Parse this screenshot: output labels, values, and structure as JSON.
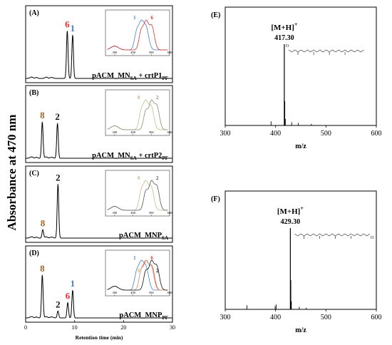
{
  "figure": {
    "y_axis_label": "Absorbance at 470 nm",
    "x_axis_label": "Retention time (min)",
    "x_ticks": [
      "0",
      "10",
      "20",
      "30"
    ],
    "ms_x_label": "m/z"
  },
  "colors": {
    "peak_6": "#e0322d",
    "peak_1": "#4a7fc9",
    "peak_8": "#a8642a",
    "peak_2": "#111111",
    "trace_black": "#000000",
    "trace_tan": "#d4b48a",
    "trace_gray": "#8c8c7a"
  },
  "chart_data": [
    {
      "type": "line",
      "panel": "(A)",
      "strain_main": "pACM_MN",
      "strain_sub": "SA",
      "plus": " + crtP1",
      "plus_sub": "PF",
      "x_range": [
        0,
        30
      ],
      "peaks": [
        {
          "label": "6",
          "rt": 8.5,
          "height": 0.68,
          "color": "#e0322d"
        },
        {
          "label": "1",
          "rt": 9.6,
          "height": 0.62,
          "color": "#4a7fc9"
        }
      ],
      "inset": {
        "x_ticks": [
          "300",
          "400",
          "500",
          "600"
        ],
        "series": [
          {
            "name": "1",
            "color": "#4a7fc9",
            "peaks_nm": [
              420,
              445,
              472
            ]
          },
          {
            "name": "6",
            "color": "#e0322d",
            "peaks_nm": [
              445,
              472,
              503
            ]
          }
        ]
      }
    },
    {
      "type": "line",
      "panel": "(B)",
      "strain_main": "pACM_MN",
      "strain_sub": "SA",
      "plus": " + crtP2",
      "plus_sub": "PF",
      "x_range": [
        0,
        30
      ],
      "peaks": [
        {
          "label": "8",
          "rt": 3.4,
          "height": 0.52,
          "color": "#a8642a"
        },
        {
          "label": "2",
          "rt": 6.5,
          "height": 0.5,
          "color": "#111111"
        }
      ],
      "inset": {
        "x_ticks": [
          "300",
          "400",
          "500",
          "600"
        ],
        "series": [
          {
            "name": "8",
            "color": "#d4b48a",
            "peaks_nm": [
              445,
              470,
              500
            ]
          },
          {
            "name": "2",
            "color": "#8c8c7a",
            "peaks_nm": [
              470,
              500,
              530
            ]
          }
        ]
      }
    },
    {
      "type": "line",
      "panel": "(C)",
      "strain_main": "pACM_MNP",
      "strain_sub": "SA",
      "plus": "",
      "plus_sub": "",
      "x_range": [
        0,
        30
      ],
      "peaks": [
        {
          "label": "8",
          "rt": 3.5,
          "height": 0.12,
          "color": "#a8642a"
        },
        {
          "label": "2",
          "rt": 6.6,
          "height": 0.78,
          "color": "#111111"
        }
      ],
      "inset": {
        "x_ticks": [
          "300",
          "400",
          "500",
          "600"
        ],
        "series": [
          {
            "name": "8",
            "color": "#d4b48a",
            "peaks_nm": [
              445,
              470,
              500
            ]
          },
          {
            "name": "2",
            "color": "#555555",
            "peaks_nm": [
              470,
              500,
              530
            ]
          }
        ]
      }
    },
    {
      "type": "line",
      "panel": "(D)",
      "strain_main": "pACM_MNP",
      "strain_sub": "PF",
      "plus": "",
      "plus_sub": "",
      "x_range": [
        0,
        30
      ],
      "peaks": [
        {
          "label": "8",
          "rt": 3.4,
          "height": 0.62,
          "color": "#a8642a"
        },
        {
          "label": "2",
          "rt": 6.6,
          "height": 0.1,
          "color": "#111111"
        },
        {
          "label": "6",
          "rt": 8.6,
          "height": 0.22,
          "color": "#e0322d"
        },
        {
          "label": "1",
          "rt": 9.6,
          "height": 0.4,
          "color": "#4a7fc9"
        }
      ],
      "inset": {
        "x_ticks": [
          "300",
          "400",
          "500",
          "600"
        ],
        "series": [
          {
            "name": "1",
            "color": "#4a7fc9",
            "peaks_nm": [
              420,
              445,
              472
            ]
          },
          {
            "name": "6",
            "color": "#e0322d",
            "peaks_nm": [
              445,
              472,
              503
            ]
          },
          {
            "name": "8",
            "color": "#d4b48a",
            "peaks_nm": [
              445,
              470,
              500
            ]
          },
          {
            "name": "2",
            "color": "#111111",
            "peaks_nm": [
              470,
              500,
              530
            ]
          }
        ]
      }
    },
    {
      "type": "bar",
      "panel": "(E)",
      "ion_label": "[M+H]",
      "ion_sup": "+",
      "ion_value": "417.30",
      "x_ticks": [
        "300",
        "400",
        "500",
        "600"
      ],
      "xlim": [
        300,
        600
      ],
      "main_mz": 417.3,
      "sticks": [
        {
          "mz": 391,
          "rel": 0.05
        },
        {
          "mz": 417.3,
          "rel": 1.0
        },
        {
          "mz": 418.3,
          "rel": 0.3
        },
        {
          "mz": 419.3,
          "rel": 0.08
        },
        {
          "mz": 432,
          "rel": 0.04
        },
        {
          "mz": 445,
          "rel": 0.03
        },
        {
          "mz": 471,
          "rel": 0.02
        }
      ]
    },
    {
      "type": "bar",
      "panel": "(F)",
      "ion_label": "[M+H]",
      "ion_sup": "+",
      "ion_value": "429.30",
      "x_ticks": [
        "300",
        "400",
        "500",
        "600"
      ],
      "xlim": [
        300,
        600
      ],
      "main_mz": 429.3,
      "sticks": [
        {
          "mz": 343,
          "rel": 0.05
        },
        {
          "mz": 399,
          "rel": 0.04
        },
        {
          "mz": 401,
          "rel": 0.06
        },
        {
          "mz": 429.3,
          "rel": 1.0
        },
        {
          "mz": 430.3,
          "rel": 0.36
        },
        {
          "mz": 431.3,
          "rel": 0.1
        },
        {
          "mz": 447,
          "rel": 0.03
        },
        {
          "mz": 461,
          "rel": 0.02
        }
      ]
    }
  ]
}
